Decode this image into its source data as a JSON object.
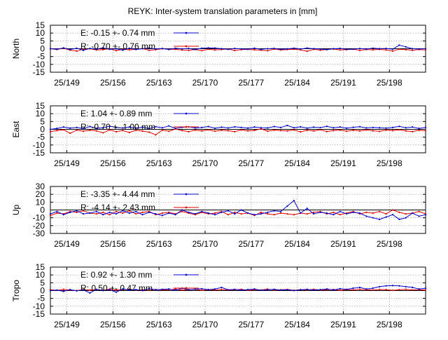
{
  "title": "REYK: Inter-system translation parameters in [mm]",
  "x_tick_labels": [
    "25/149",
    "25/156",
    "25/163",
    "25/170",
    "25/177",
    "25/184",
    "25/191",
    "25/198"
  ],
  "x_tick_days": [
    149,
    156,
    163,
    170,
    177,
    184,
    191,
    198
  ],
  "x_range": [
    146.5,
    203.5
  ],
  "colors": {
    "E": "#0000cc",
    "R": "#dd0000",
    "grid": "#999999",
    "frame": "#000000"
  },
  "chart_data": [
    {
      "type": "line",
      "ylabel": "North",
      "ylim": [
        -15,
        15
      ],
      "yticks": [
        -15,
        -10,
        -5,
        0,
        5,
        10,
        15
      ],
      "grid": true,
      "legend_position": "top-left",
      "x": [
        146.5,
        147.5,
        148.5,
        149.5,
        150.5,
        151.5,
        152.5,
        153.5,
        154.5,
        155.5,
        156.5,
        157.5,
        158.5,
        159.5,
        160.5,
        161.5,
        162.5,
        163.5,
        164.5,
        165.5,
        166.5,
        167.5,
        168.5,
        169.5,
        170.5,
        171.5,
        172.5,
        173.5,
        174.5,
        175.5,
        176.5,
        177.5,
        178.5,
        179.5,
        180.5,
        181.5,
        182.5,
        183.5,
        184.5,
        185.5,
        186.5,
        187.5,
        188.5,
        189.5,
        190.5,
        191.5,
        192.5,
        193.5,
        194.5,
        195.5,
        196.5,
        197.5,
        198.5,
        199.5,
        200.5,
        201.5,
        202.5,
        203.5
      ],
      "series": [
        {
          "name": "E",
          "legend": "E:  -0.15 +- 0.74 mm",
          "values": [
            0.0,
            -0.3,
            0.5,
            -0.5,
            0.3,
            -1.0,
            0.2,
            -0.3,
            0.6,
            -0.4,
            0.0,
            -0.9,
            0.3,
            -0.5,
            0.0,
            0.4,
            -0.2,
            0.2,
            -0.5,
            0.3,
            -0.1,
            0.2,
            -0.5,
            0.3,
            0.5,
            0.4,
            0.0,
            -0.4,
            0.2,
            -0.1,
            -0.3,
            0.3,
            -0.4,
            0.0,
            0.2,
            -0.4,
            -0.1,
            0.3,
            -0.2,
            0.4,
            0.0,
            -0.2,
            -0.6,
            0.0,
            0.2,
            -0.4,
            -0.3,
            0.1,
            -0.2,
            0.3,
            0.0,
            0.2,
            -0.3,
            2.3,
            1.2,
            0.0,
            -0.2,
            0.0
          ]
        },
        {
          "name": "R",
          "legend": "R:  -0.70 +- 0.76 mm",
          "values": [
            0.0,
            -0.5,
            0.3,
            -0.9,
            -1.5,
            -0.3,
            0.0,
            -0.8,
            -0.6,
            0.0,
            -1.2,
            -0.4,
            -0.7,
            -0.3,
            0.2,
            -1.0,
            -0.6,
            0.0,
            -0.3,
            -0.4,
            -0.8,
            -1.0,
            -0.5,
            -1.2,
            -0.3,
            -0.8,
            -0.5,
            -0.2,
            -1.1,
            -0.6,
            -0.4,
            -0.7,
            -0.9,
            -1.3,
            -0.2,
            -0.8,
            -0.5,
            -0.3,
            -0.7,
            -1.6,
            -0.4,
            -0.9,
            -0.5,
            -0.2,
            -0.8,
            -0.6,
            -0.3,
            -1.0,
            -0.5,
            -0.7,
            -0.4,
            -0.8,
            -1.5,
            -0.3,
            -0.6,
            -1.0,
            -0.5,
            -0.8
          ]
        }
      ]
    },
    {
      "type": "line",
      "ylabel": "East",
      "ylim": [
        -15,
        15
      ],
      "yticks": [
        -15,
        -10,
        -5,
        0,
        5,
        10,
        15
      ],
      "grid": true,
      "legend_position": "top-left",
      "x": [
        146.5,
        147.5,
        148.5,
        149.5,
        150.5,
        151.5,
        152.5,
        153.5,
        154.5,
        155.5,
        156.5,
        157.5,
        158.5,
        159.5,
        160.5,
        161.5,
        162.5,
        163.5,
        164.5,
        165.5,
        166.5,
        167.5,
        168.5,
        169.5,
        170.5,
        171.5,
        172.5,
        173.5,
        174.5,
        175.5,
        176.5,
        177.5,
        178.5,
        179.5,
        180.5,
        181.5,
        182.5,
        183.5,
        184.5,
        185.5,
        186.5,
        187.5,
        188.5,
        189.5,
        190.5,
        191.5,
        192.5,
        193.5,
        194.5,
        195.5,
        196.5,
        197.5,
        198.5,
        199.5,
        200.5,
        201.5,
        202.5,
        203.5
      ],
      "series": [
        {
          "name": "E",
          "legend": "E:   1.04 +- 0.89 mm",
          "values": [
            0.0,
            0.6,
            1.5,
            0.8,
            1.2,
            0.5,
            1.8,
            0.7,
            1.0,
            2.0,
            1.2,
            0.9,
            1.5,
            0.8,
            1.4,
            0.5,
            1.7,
            1.0,
            2.2,
            0.6,
            1.3,
            1.6,
            0.9,
            1.2,
            1.8,
            0.7,
            1.4,
            0.9,
            1.6,
            1.2,
            0.8,
            1.5,
            1.0,
            0.9,
            1.8,
            1.2,
            2.5,
            1.0,
            1.6,
            0.8,
            1.4,
            1.1,
            1.9,
            1.0,
            1.5,
            0.8,
            1.3,
            1.7,
            0.9,
            1.2,
            1.0,
            0.8,
            1.2,
            1.9,
            1.0,
            1.5,
            0.6,
            1.2
          ]
        },
        {
          "name": "R",
          "legend": "R:  -0.70 +- 1.00 mm",
          "values": [
            -1.5,
            -0.8,
            -0.3,
            -2.5,
            -0.5,
            -1.2,
            -0.6,
            -1.0,
            -2.2,
            -0.4,
            -1.5,
            -0.8,
            -2.0,
            -0.6,
            -1.1,
            -1.8,
            -3.5,
            -0.5,
            -1.2,
            0.2,
            -0.8,
            -1.5,
            -0.5,
            -1.0,
            -0.3,
            -1.2,
            -0.6,
            -0.9,
            -1.5,
            -0.4,
            -1.0,
            -0.7,
            0.3,
            -1.2,
            -0.5,
            -0.8,
            -1.0,
            -0.4,
            -1.6,
            -0.6,
            -1.0,
            -0.3,
            -1.4,
            -0.8,
            -0.5,
            -1.2,
            -0.6,
            -1.0,
            -0.4,
            -0.9,
            -1.3,
            -0.5,
            -0.8,
            -0.3,
            -1.0,
            -1.5,
            -0.6,
            -0.9
          ]
        }
      ]
    },
    {
      "type": "line",
      "ylabel": "Up",
      "ylim": [
        -30,
        30
      ],
      "yticks": [
        -30,
        -20,
        -10,
        0,
        10,
        20,
        30
      ],
      "grid": true,
      "legend_position": "top-left",
      "x": [
        146.5,
        147.5,
        148.5,
        149.5,
        150.5,
        151.5,
        152.5,
        153.5,
        154.5,
        155.5,
        156.5,
        157.5,
        158.5,
        159.5,
        160.5,
        161.5,
        162.5,
        163.5,
        164.5,
        165.5,
        166.5,
        167.5,
        168.5,
        169.5,
        170.5,
        171.5,
        172.5,
        173.5,
        174.5,
        175.5,
        176.5,
        177.5,
        178.5,
        179.5,
        180.5,
        181.5,
        182.5,
        183.5,
        184.5,
        185.5,
        186.5,
        187.5,
        188.5,
        189.5,
        190.5,
        191.5,
        192.5,
        193.5,
        194.5,
        195.5,
        196.5,
        197.5,
        198.5,
        199.5,
        200.5,
        201.5,
        202.5,
        203.5
      ],
      "series": [
        {
          "name": "E",
          "legend": "E:  -3.35 +- 4.44 mm",
          "values": [
            -5.0,
            -2.0,
            -6.0,
            -3.0,
            -1.0,
            -5.0,
            -4.0,
            -2.0,
            -6.0,
            -3.0,
            -5.0,
            -1.0,
            -4.0,
            -2.0,
            -6.0,
            -3.0,
            -5.0,
            -7.0,
            -4.0,
            -6.0,
            0.0,
            -3.0,
            -5.0,
            -2.0,
            -4.0,
            -6.0,
            -3.0,
            -1.0,
            -5.0,
            0.0,
            -4.0,
            -6.0,
            -5.0,
            -3.0,
            -1.0,
            -2.0,
            5.0,
            12.0,
            -4.0,
            2.0,
            -5.0,
            -3.0,
            -4.0,
            -6.0,
            -2.0,
            -5.0,
            -3.0,
            -4.0,
            -8.0,
            -10.0,
            -12.0,
            -9.0,
            -6.0,
            -12.0,
            -10.0,
            -4.0,
            -8.0,
            -6.0
          ]
        },
        {
          "name": "R",
          "legend": "R:  -4.14 +- 2.43 mm",
          "values": [
            -7.0,
            -4.0,
            -5.0,
            -2.0,
            -3.0,
            -1.0,
            -4.0,
            -5.0,
            -3.0,
            -6.0,
            -2.0,
            -4.0,
            -1.0,
            -5.0,
            -3.0,
            -2.0,
            -6.0,
            -4.0,
            -3.0,
            -5.0,
            -2.0,
            -4.0,
            -6.0,
            -3.0,
            -5.0,
            -4.0,
            -2.0,
            -6.0,
            -3.0,
            -5.0,
            -4.0,
            -7.0,
            -3.0,
            -5.0,
            -6.0,
            -4.0,
            -5.0,
            -6.0,
            -4.0,
            -5.0,
            -3.0,
            -2.0,
            -5.0,
            -3.0,
            -6.0,
            -4.0,
            -2.0,
            -5.0,
            -3.0,
            -4.0,
            -2.0,
            -5.0,
            0.0,
            -3.0,
            -5.0,
            -4.0,
            -2.0,
            -5.0
          ]
        }
      ]
    },
    {
      "type": "line",
      "ylabel": "Tropo",
      "ylim": [
        -15,
        15
      ],
      "yticks": [
        -15,
        -10,
        -5,
        0,
        5,
        10,
        15
      ],
      "grid": true,
      "legend_position": "top-left",
      "x": [
        146.5,
        147.5,
        148.5,
        149.5,
        150.5,
        151.5,
        152.5,
        153.5,
        154.5,
        155.5,
        156.5,
        157.5,
        158.5,
        159.5,
        160.5,
        161.5,
        162.5,
        163.5,
        164.5,
        165.5,
        166.5,
        167.5,
        168.5,
        169.5,
        170.5,
        171.5,
        172.5,
        173.5,
        174.5,
        175.5,
        176.5,
        177.5,
        178.5,
        179.5,
        180.5,
        181.5,
        182.5,
        183.5,
        184.5,
        185.5,
        186.5,
        187.5,
        188.5,
        189.5,
        190.5,
        191.5,
        192.5,
        193.5,
        194.5,
        195.5,
        196.5,
        197.5,
        198.5,
        199.5,
        200.5,
        201.5,
        202.5,
        203.5
      ],
      "series": [
        {
          "name": "E",
          "legend": "E:   0.92 +- 1.30 mm",
          "values": [
            0.0,
            0.3,
            -0.5,
            0.6,
            -0.2,
            0.4,
            -1.5,
            0.8,
            0.0,
            0.5,
            -1.0,
            1.0,
            0.3,
            0.6,
            0.0,
            1.2,
            0.5,
            0.8,
            1.0,
            0.2,
            1.5,
            0.6,
            0.9,
            1.2,
            0.6,
            1.0,
            2.0,
            0.5,
            0.8,
            0.3,
            0.6,
            1.0,
            0.2,
            0.5,
            0.8,
            0.3,
            0.6,
            0.0,
            0.5,
            0.8,
            0.3,
            0.6,
            1.0,
            0.4,
            1.2,
            0.8,
            1.5,
            2.0,
            1.0,
            1.5,
            2.5,
            3.0,
            3.2,
            3.0,
            2.5,
            2.0,
            1.0,
            1.5
          ]
        },
        {
          "name": "R",
          "legend": "R:   0.50 +- 0.47 mm",
          "values": [
            0.5,
            0.2,
            0.8,
            0.4,
            0.0,
            0.6,
            0.3,
            0.7,
            0.2,
            0.9,
            0.4,
            0.6,
            0.8,
            0.3,
            0.5,
            0.2,
            0.7,
            0.4,
            0.6,
            0.9,
            0.3,
            0.5,
            0.8,
            0.2,
            0.6,
            0.4,
            0.7,
            0.3,
            0.5,
            0.8,
            0.2,
            0.6,
            0.4,
            0.9,
            0.3,
            0.5,
            0.7,
            0.2,
            0.6,
            0.4,
            0.8,
            0.3,
            0.5,
            0.7,
            0.2,
            0.6,
            0.4,
            0.8,
            0.5,
            0.3,
            0.7,
            0.6,
            0.2,
            0.5,
            0.8,
            0.4,
            0.6,
            0.3
          ]
        }
      ]
    }
  ]
}
